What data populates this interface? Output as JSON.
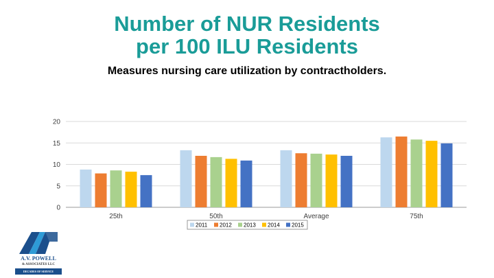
{
  "title_line1": "Number of NUR Residents",
  "title_line2": "per 100 ILU Residents",
  "subtitle": "Measures nursing care utilization by contractholders.",
  "logo": {
    "name": "A.V. POWELL",
    "line2": "& ASSOCIATES LLC",
    "line3": "DECADES OF SERVICE"
  },
  "colors": {
    "title": "#1a9c98",
    "series": [
      "#bdd7ee",
      "#ed7d31",
      "#a9d18e",
      "#ffc000",
      "#4472c4"
    ]
  },
  "chart_data": {
    "type": "bar",
    "categories": [
      "25th",
      "50th",
      "Average",
      "75th"
    ],
    "series": [
      {
        "name": "2011",
        "values": [
          8.8,
          13.3,
          13.3,
          16.3
        ]
      },
      {
        "name": "2012",
        "values": [
          7.9,
          12.0,
          12.6,
          16.5
        ]
      },
      {
        "name": "2013",
        "values": [
          8.6,
          11.7,
          12.5,
          15.8
        ]
      },
      {
        "name": "2014",
        "values": [
          8.3,
          11.3,
          12.3,
          15.5
        ]
      },
      {
        "name": "2015",
        "values": [
          7.5,
          10.9,
          12.0,
          14.9
        ]
      }
    ],
    "ylim": [
      0,
      20
    ],
    "yticks": [
      0,
      5,
      10,
      15,
      20
    ],
    "grid": true,
    "legend": "bottom"
  }
}
